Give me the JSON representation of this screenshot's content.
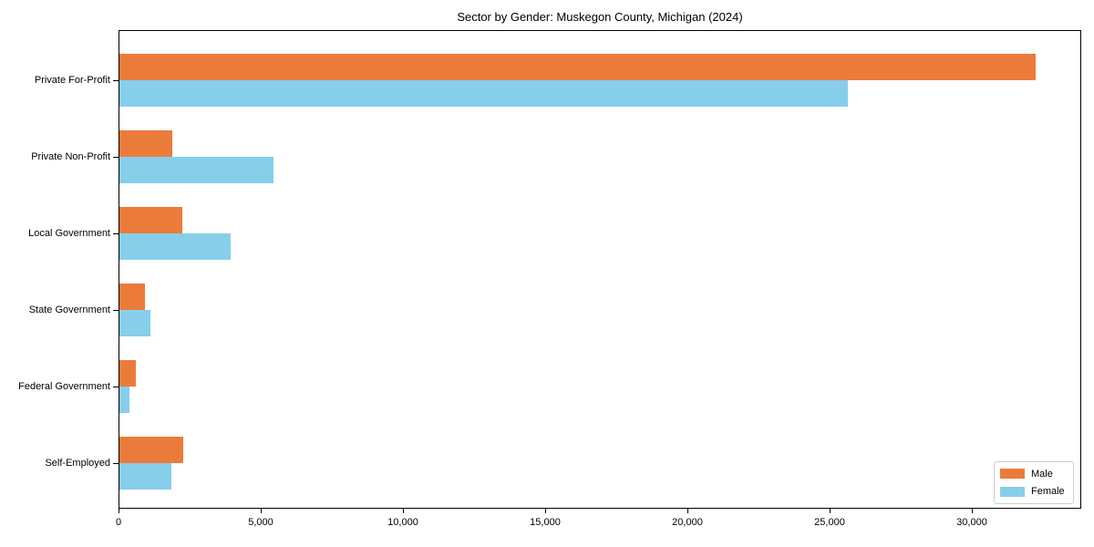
{
  "chart_data": {
    "type": "bar",
    "orientation": "horizontal",
    "title": "Sector by Gender: Muskegon County, Michigan (2024)",
    "categories": [
      "Private For-Profit",
      "Private Non-Profit",
      "Local Government",
      "State Government",
      "Federal Government",
      "Self-Employed"
    ],
    "series": [
      {
        "name": "Male",
        "color": "#EB7B3B",
        "values": [
          32200,
          1850,
          2200,
          900,
          575,
          2250
        ]
      },
      {
        "name": "Female",
        "color": "#87CEEB",
        "values": [
          25600,
          5400,
          3900,
          1100,
          350,
          1825
        ]
      }
    ],
    "xlabel": "",
    "ylabel": "",
    "xlim": [
      0,
      33846
    ],
    "xticks": [
      0,
      5000,
      10000,
      15000,
      20000,
      25000,
      30000
    ],
    "xtick_labels": [
      "0",
      "5,000",
      "10,000",
      "15,000",
      "20,000",
      "25,000",
      "30,000"
    ],
    "grid": false,
    "legend": {
      "position": "lower right"
    }
  },
  "colors": {
    "frame": "#000000",
    "legend_border": "#cccccc",
    "background": "#ffffff"
  }
}
